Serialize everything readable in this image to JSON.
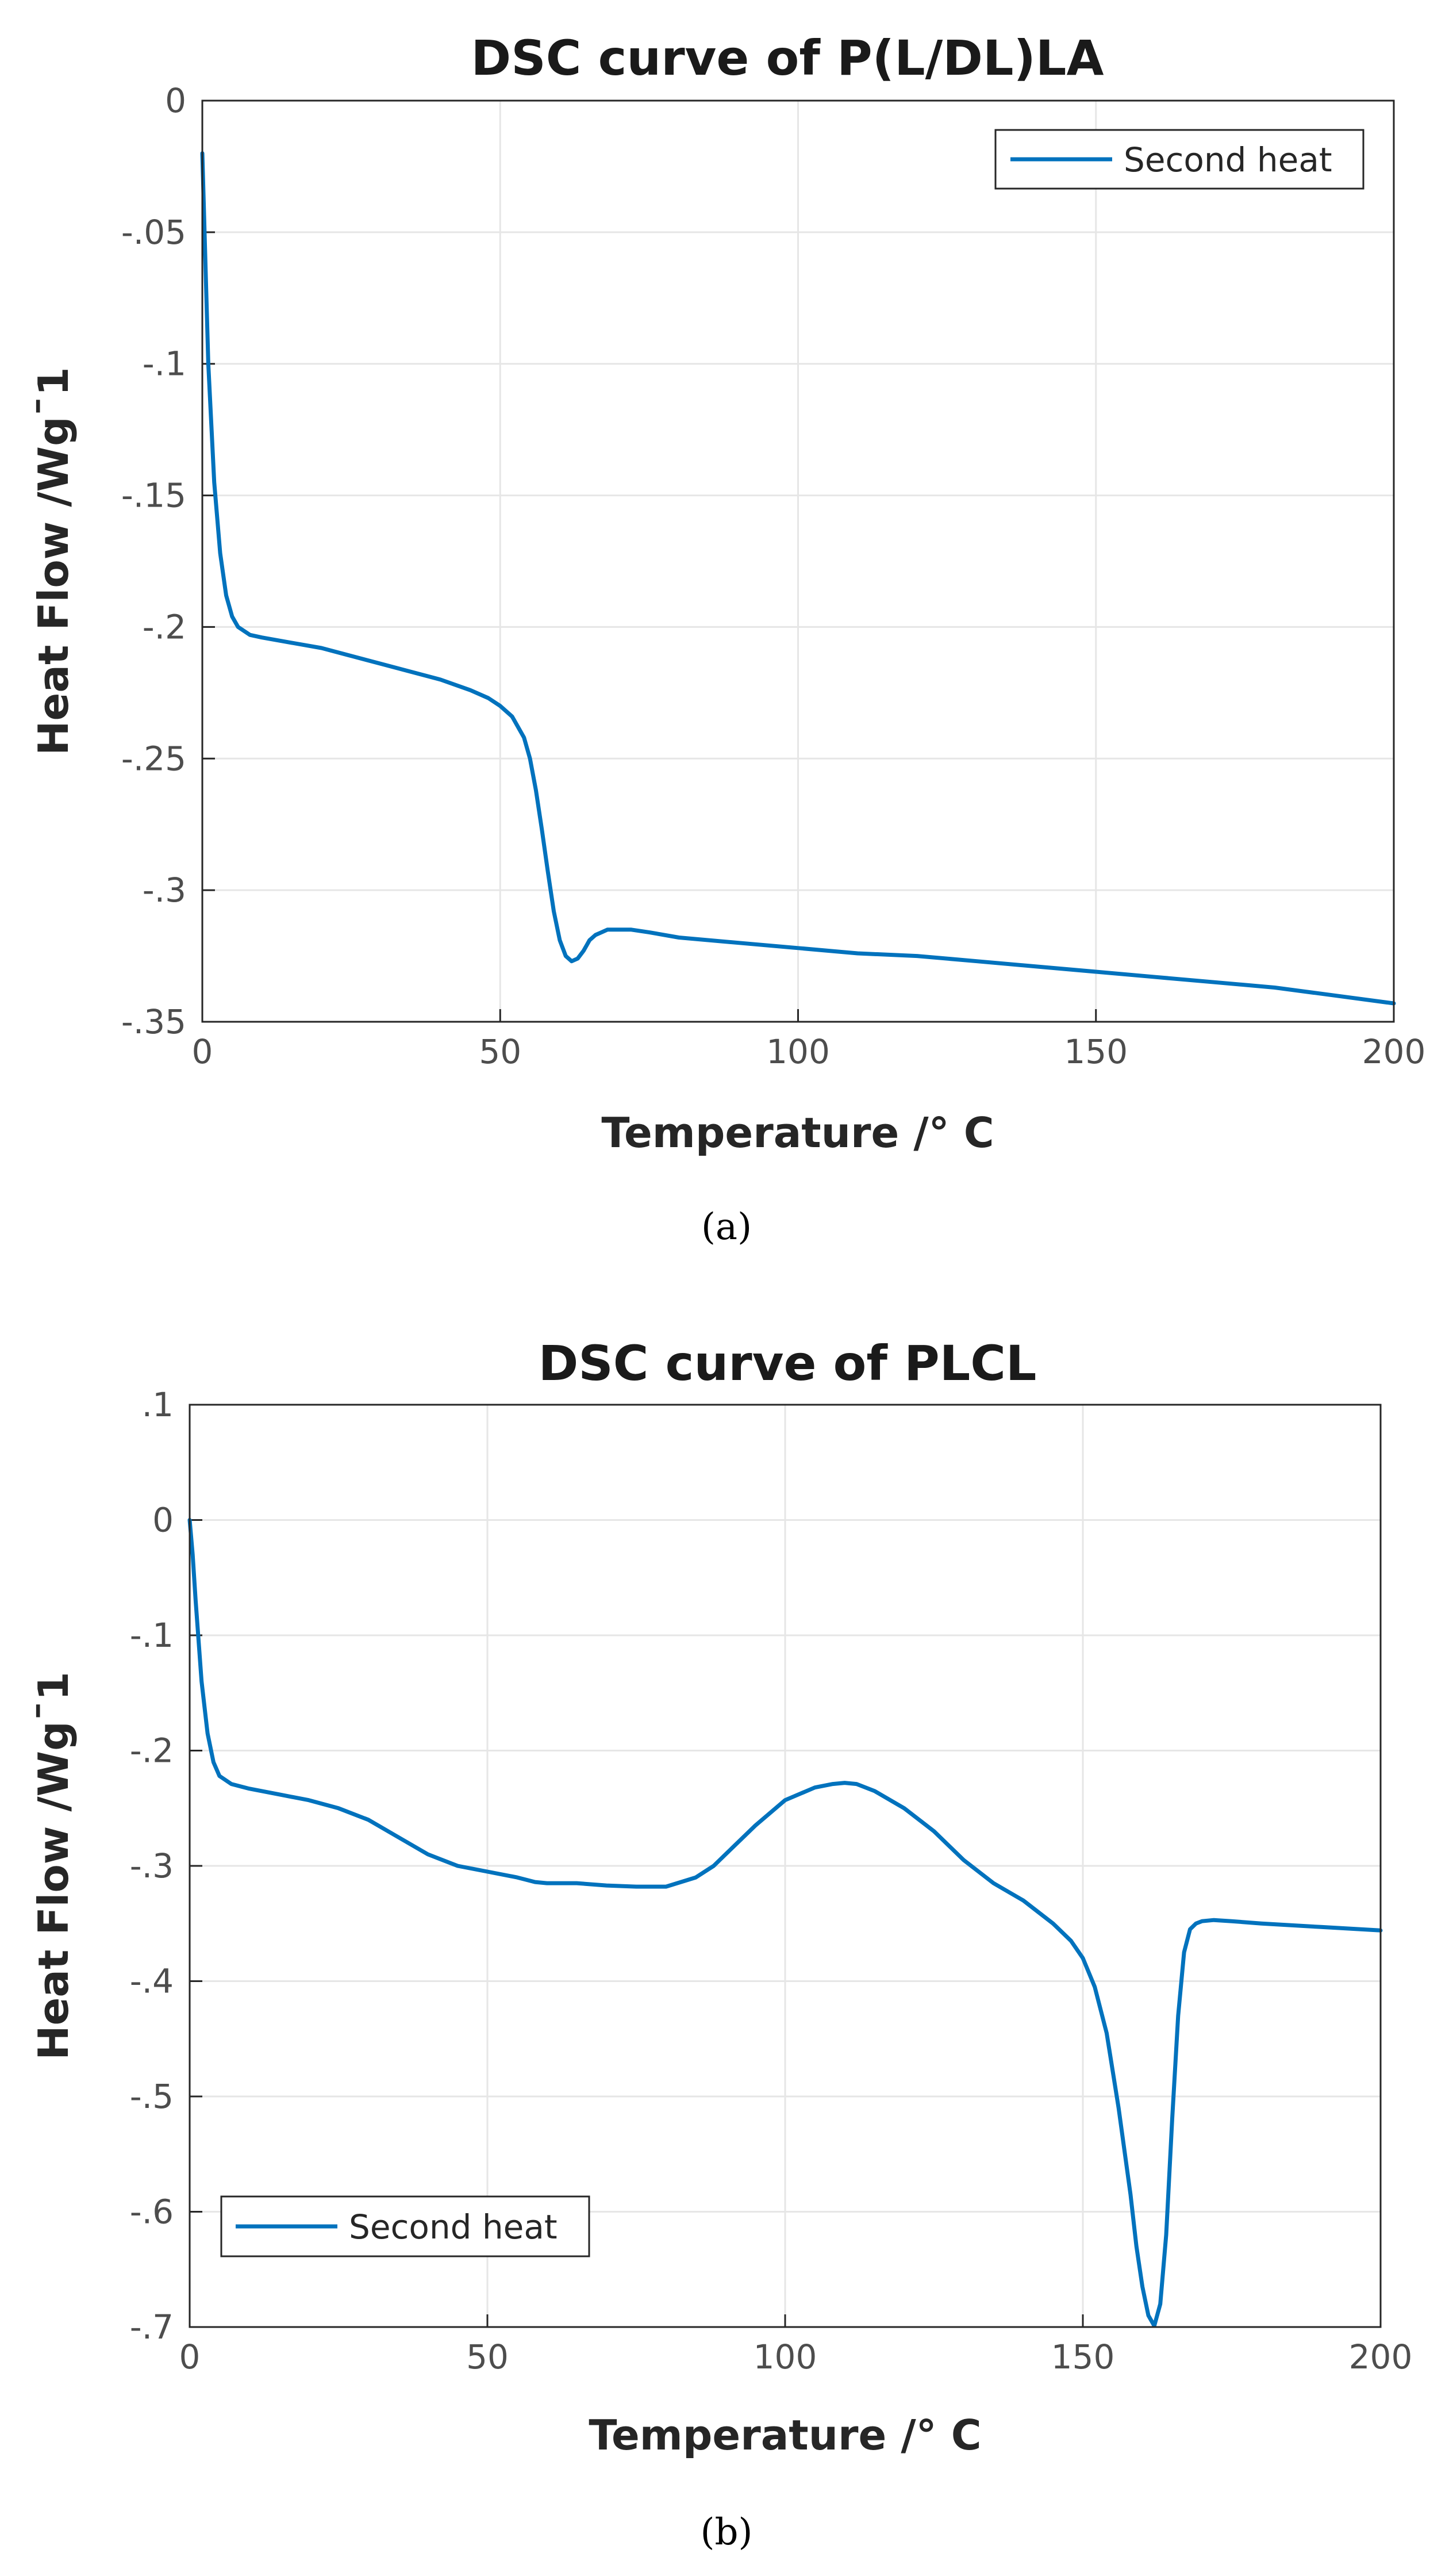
{
  "chart_data": [
    {
      "type": "line",
      "panel": "a",
      "caption": "(a)",
      "title": "DSC curve of P(L/DL)LA",
      "xlabel": "Temperature /° C",
      "ylabel": "Heat Flow /Wgˉ1",
      "xlim": [
        0,
        200
      ],
      "ylim": [
        -0.35,
        0
      ],
      "xticks": [
        0,
        50,
        100,
        150,
        200
      ],
      "yticks": [
        0,
        -0.05,
        -0.1,
        -0.15,
        -0.2,
        -0.25,
        -0.3,
        -0.35
      ],
      "grid": true,
      "legend_position": "top-right",
      "series": [
        {
          "name": "Second heat",
          "color": "#0072BD",
          "x": [
            0,
            0.5,
            1,
            2,
            3,
            4,
            5,
            6,
            8,
            10,
            15,
            20,
            25,
            30,
            35,
            40,
            45,
            48,
            50,
            52,
            54,
            55,
            56,
            57,
            58,
            59,
            60,
            61,
            62,
            63,
            64,
            65,
            66,
            67,
            68,
            70,
            72,
            75,
            80,
            90,
            100,
            110,
            120,
            130,
            140,
            150,
            160,
            170,
            180,
            190,
            200
          ],
          "y": [
            -0.02,
            -0.06,
            -0.1,
            -0.145,
            -0.172,
            -0.188,
            -0.196,
            -0.2,
            -0.203,
            -0.204,
            -0.206,
            -0.208,
            -0.211,
            -0.214,
            -0.217,
            -0.22,
            -0.224,
            -0.227,
            -0.23,
            -0.234,
            -0.242,
            -0.25,
            -0.262,
            -0.277,
            -0.293,
            -0.308,
            -0.319,
            -0.325,
            -0.327,
            -0.326,
            -0.323,
            -0.319,
            -0.317,
            -0.316,
            -0.315,
            -0.315,
            -0.315,
            -0.316,
            -0.318,
            -0.32,
            -0.322,
            -0.324,
            -0.325,
            -0.327,
            -0.329,
            -0.331,
            -0.333,
            -0.335,
            -0.337,
            -0.34,
            -0.343
          ]
        }
      ]
    },
    {
      "type": "line",
      "panel": "b",
      "caption": "(b)",
      "title": "DSC curve of PLCL",
      "xlabel": "Temperature /° C",
      "ylabel": "Heat Flow /Wgˉ1",
      "xlim": [
        0,
        200
      ],
      "ylim": [
        -0.7,
        0.1
      ],
      "xticks": [
        0,
        50,
        100,
        150,
        200
      ],
      "yticks": [
        0.1,
        0,
        -0.1,
        -0.2,
        -0.3,
        -0.4,
        -0.5,
        -0.6,
        -0.7
      ],
      "grid": true,
      "legend_position": "bottom-left",
      "series": [
        {
          "name": "Second heat",
          "color": "#0072BD",
          "x": [
            0,
            0.5,
            1,
            2,
            3,
            4,
            5,
            7,
            10,
            15,
            20,
            25,
            30,
            35,
            40,
            45,
            50,
            55,
            58,
            60,
            65,
            70,
            75,
            80,
            85,
            88,
            90,
            95,
            100,
            105,
            108,
            110,
            112,
            115,
            120,
            125,
            130,
            135,
            140,
            145,
            148,
            150,
            152,
            154,
            156,
            158,
            159,
            160,
            161,
            162,
            163,
            164,
            165,
            166,
            167,
            168,
            169,
            170,
            172,
            175,
            180,
            190,
            200
          ],
          "y": [
            0,
            -0.03,
            -0.07,
            -0.14,
            -0.185,
            -0.21,
            -0.222,
            -0.229,
            -0.233,
            -0.238,
            -0.243,
            -0.25,
            -0.26,
            -0.275,
            -0.29,
            -0.3,
            -0.305,
            -0.31,
            -0.314,
            -0.315,
            -0.315,
            -0.317,
            -0.318,
            -0.318,
            -0.31,
            -0.3,
            -0.29,
            -0.265,
            -0.243,
            -0.232,
            -0.229,
            -0.228,
            -0.229,
            -0.235,
            -0.25,
            -0.27,
            -0.295,
            -0.315,
            -0.33,
            -0.35,
            -0.365,
            -0.38,
            -0.405,
            -0.445,
            -0.51,
            -0.585,
            -0.63,
            -0.665,
            -0.69,
            -0.699,
            -0.68,
            -0.62,
            -0.52,
            -0.43,
            -0.375,
            -0.355,
            -0.35,
            -0.348,
            -0.347,
            -0.348,
            -0.35,
            -0.353,
            -0.356
          ]
        }
      ]
    }
  ]
}
